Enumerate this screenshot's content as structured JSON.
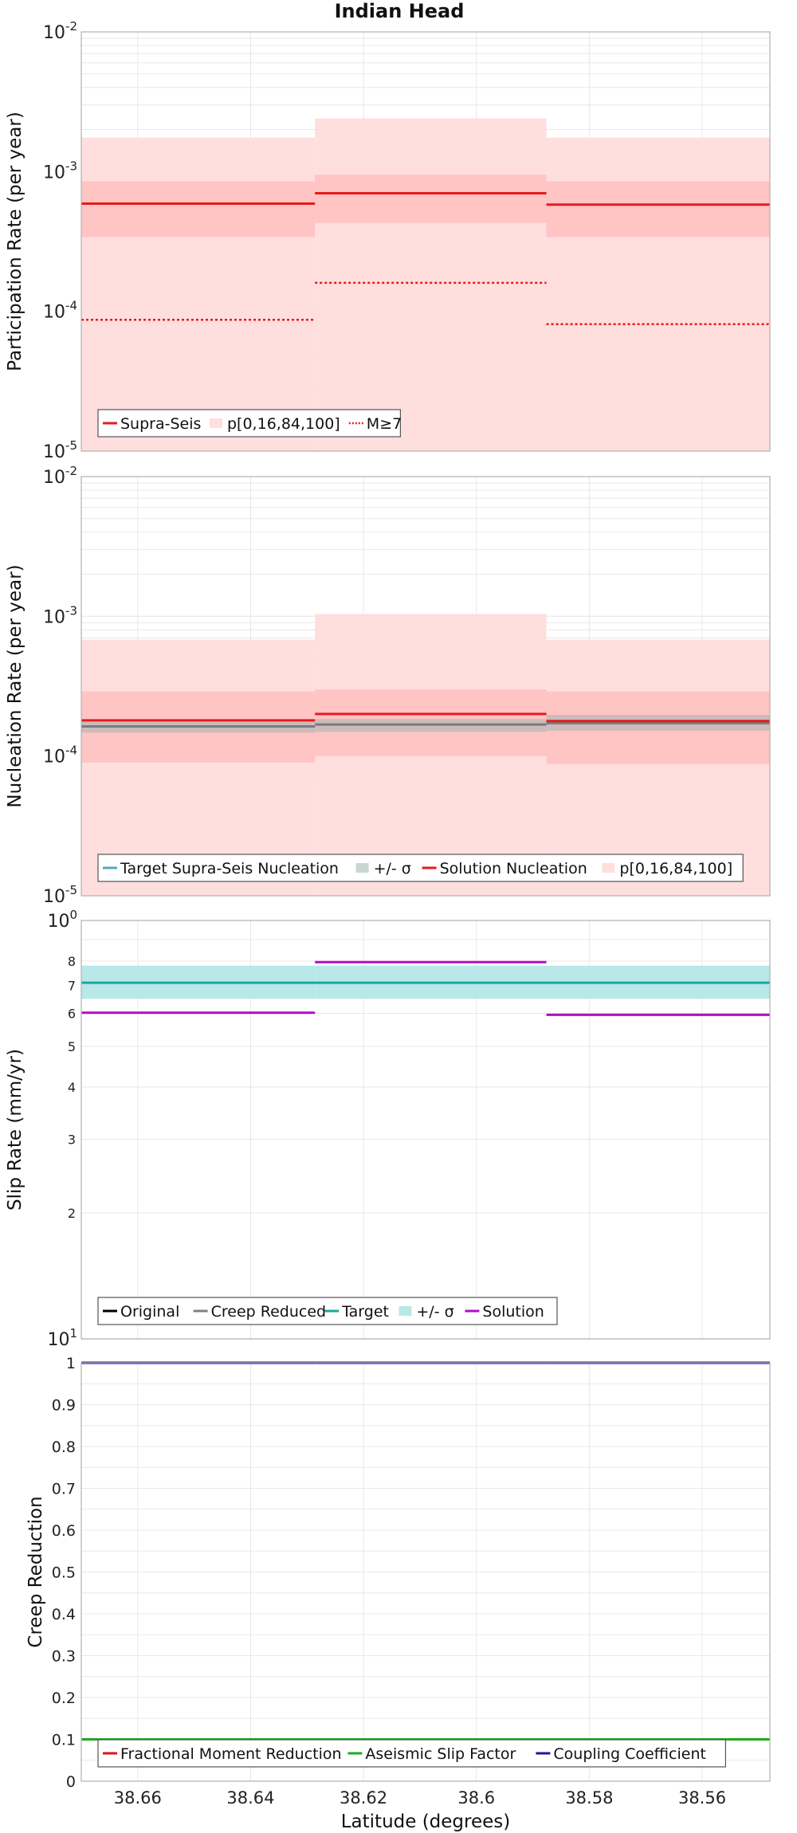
{
  "colors": {
    "supra": "#e8191c",
    "band_light": "#ffdede",
    "band_dark": "#ffc0c0",
    "target_nuc": "#55aabb",
    "sigma_gray": "#b8b8b8",
    "slip_target": "#1aa89a",
    "slip_band": "#b8e8e8",
    "solution": "#b10fc0",
    "original": "#000000",
    "creep": "#808080",
    "aseismic": "#22aa22",
    "coupling": "#1a1a99",
    "frac": "#d81818",
    "grid": "#e8e8e8"
  },
  "chart_data": [
    {
      "type": "line",
      "title": "Indian Head",
      "ylabel": "Participation Rate (per year)",
      "yscale": "log",
      "ylim": [
        1e-05,
        0.01
      ],
      "ytick_exponents": [
        -5,
        -4,
        -3,
        -2
      ],
      "xlim": [
        38.67,
        38.548
      ],
      "segments": [
        [
          38.67,
          38.6286
        ],
        [
          38.6286,
          38.5876
        ],
        [
          38.5876,
          38.548
        ]
      ],
      "series": [
        {
          "name": "Supra-Seis",
          "style": "solid",
          "values": [
            0.00059,
            0.0007,
            0.00058
          ]
        },
        {
          "name": "M≥7",
          "style": "dotted",
          "values": [
            8.7e-05,
            0.00016,
            8.1e-05
          ]
        }
      ],
      "bands": [
        {
          "lo": [
            1e-05,
            1e-05,
            1e-05
          ],
          "hi": [
            0.00175,
            0.0024,
            0.00175
          ]
        },
        {
          "lo": [
            0.00034,
            0.00043,
            0.00034
          ],
          "hi": [
            0.00085,
            0.00095,
            0.00085
          ]
        }
      ],
      "legend": [
        "Supra-Seis",
        "p[0,16,84,100]",
        "M≥7"
      ],
      "legend_position": "lower-left"
    },
    {
      "type": "line",
      "ylabel": "Nucleation Rate (per year)",
      "yscale": "log",
      "ylim": [
        1e-05,
        0.01
      ],
      "ytick_exponents": [
        -5,
        -4,
        -3,
        -2
      ],
      "xlim": [
        38.67,
        38.548
      ],
      "segments": [
        [
          38.67,
          38.6286
        ],
        [
          38.6286,
          38.5876
        ],
        [
          38.5876,
          38.548
        ]
      ],
      "series": [
        {
          "name": "Target Supra-Seis Nucleation",
          "style": "solid",
          "values": [
            0.000163,
            0.000168,
            0.000172
          ]
        },
        {
          "name": "Solution Nucleation",
          "style": "solid",
          "values": [
            0.00018,
            0.0002,
            0.000178
          ]
        }
      ],
      "target_sigma": {
        "lo": [
          0.000147,
          0.000149,
          0.000152
        ],
        "hi": [
          0.000178,
          0.000184,
          0.000197
        ]
      },
      "bands": [
        {
          "lo": [
            1e-05,
            1e-05,
            1e-05
          ],
          "hi": [
            0.00068,
            0.00104,
            0.00068
          ]
        },
        {
          "lo": [
            9e-05,
            0.0001,
            8.8e-05
          ],
          "hi": [
            0.00029,
            0.0003,
            0.00029
          ]
        }
      ],
      "legend": [
        "Target Supra-Seis Nucleation",
        "+/- σ",
        "Solution Nucleation",
        "p[0,16,84,100]"
      ],
      "legend_position": "lower-left"
    },
    {
      "type": "line",
      "ylabel": "Slip Rate (mm/yr)",
      "yscale": "log",
      "ylim": [
        1,
        10
      ],
      "ytick_labels": [
        "2",
        "3",
        "4",
        "5",
        "6",
        "7",
        "8"
      ],
      "ytick_values": [
        2,
        3,
        4,
        5,
        6,
        7,
        8
      ],
      "yend_labels": [
        "10",
        "0",
        "1",
        "1"
      ],
      "xlim": [
        38.67,
        38.548
      ],
      "segments": [
        [
          38.67,
          38.6286
        ],
        [
          38.6286,
          38.5876
        ],
        [
          38.5876,
          38.548
        ]
      ],
      "series": [
        {
          "name": "Target",
          "values": [
            7.1,
            7.1,
            7.1
          ]
        },
        {
          "name": "Solution",
          "values": [
            6.02,
            7.95,
            5.95
          ]
        }
      ],
      "target_sigma": {
        "lo": [
          6.5,
          6.5,
          6.5
        ],
        "hi": [
          7.8,
          7.8,
          7.8
        ]
      },
      "legend": [
        "Original",
        "Creep Reduced",
        "Target",
        "+/- σ",
        "Solution"
      ],
      "legend_position": "lower-left"
    },
    {
      "type": "line",
      "ylabel": "Creep Reduction",
      "xlabel": "Latitude (degrees)",
      "yscale": "linear",
      "ylim": [
        0,
        1
      ],
      "ytick_labels": [
        "0",
        "0.1",
        "0.2",
        "0.3",
        "0.4",
        "0.5",
        "0.6",
        "0.7",
        "0.8",
        "0.9",
        "1"
      ],
      "xtick_labels": [
        "38.66",
        "38.64",
        "38.62",
        "38.6",
        "38.58",
        "38.56"
      ],
      "xtick_values": [
        38.66,
        38.64,
        38.62,
        38.6,
        38.58,
        38.56
      ],
      "xlim": [
        38.67,
        38.548
      ],
      "segments": [
        [
          38.67,
          38.6286
        ],
        [
          38.6286,
          38.5876
        ],
        [
          38.5876,
          38.548
        ]
      ],
      "series": [
        {
          "name": "Aseismic Slip Factor",
          "values": [
            0.1,
            0.1,
            0.1
          ]
        },
        {
          "name": "Coupling Coefficient",
          "values": [
            1,
            1,
            1
          ]
        }
      ],
      "legend": [
        "Fractional Moment Reduction",
        "Aseismic Slip Factor",
        "Coupling Coefficient"
      ],
      "legend_position": "lower-left"
    }
  ]
}
